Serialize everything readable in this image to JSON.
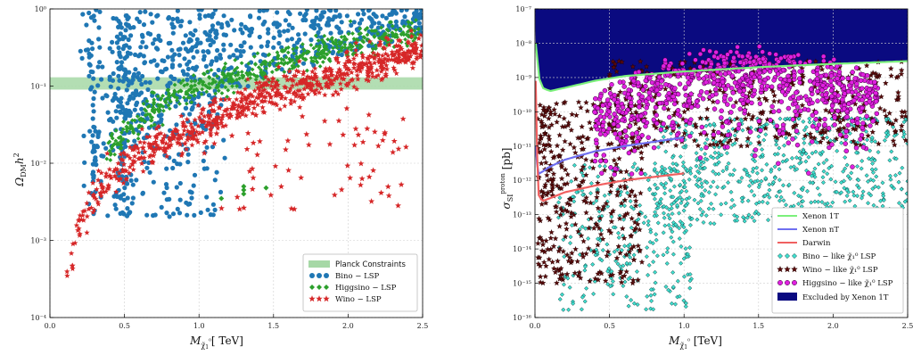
{
  "chart_data": [
    {
      "type": "scatter",
      "xlabel": "M_{χ̃₁⁰} [ TeV]",
      "ylabel": "Ω_{DM} h²",
      "xlim": [
        0.0,
        2.5
      ],
      "ylim": [
        0.0001,
        1
      ],
      "yscale": "log",
      "x_ticks": [
        "0.0",
        "0.5",
        "1.0",
        "1.5",
        "2.0",
        "2.5"
      ],
      "y_ticks": [
        "10⁻⁴",
        "10⁻³",
        "10⁻²",
        "10⁻¹",
        "10⁰"
      ],
      "grid": true,
      "legend_position": "lower-right",
      "band": {
        "name": "Planck Constraints",
        "y_low": 0.09,
        "y_high": 0.13,
        "color": "#a6d8a6"
      },
      "series": [
        {
          "name": "Bino − LSP",
          "color": "#1f77b4",
          "marker": "circle",
          "x": [
            0.2,
            0.3,
            0.4,
            0.45,
            0.5,
            0.55,
            0.6,
            0.7,
            0.8,
            0.9,
            1.0,
            1.2,
            1.4,
            1.6,
            1.8,
            2.0,
            2.2,
            2.4
          ],
          "y": [
            0.005,
            0.02,
            0.003,
            0.5,
            0.8,
            0.6,
            0.2,
            0.1,
            0.05,
            0.3,
            0.15,
            0.2,
            0.25,
            0.3,
            0.35,
            0.45,
            0.5,
            0.6
          ]
        },
        {
          "name": "Higgsino − LSP",
          "color": "#2ca02c",
          "marker": "diamond",
          "x": [
            0.4,
            0.6,
            0.8,
            1.0,
            1.2,
            1.4,
            1.6,
            1.8,
            2.0,
            2.2,
            2.4,
            1.15,
            1.3,
            1.45
          ],
          "y": [
            0.015,
            0.035,
            0.07,
            0.1,
            0.13,
            0.17,
            0.22,
            0.28,
            0.33,
            0.4,
            0.5,
            0.0035,
            0.005,
            0.0045
          ]
        },
        {
          "name": "Wino − LSP",
          "color": "#d62728",
          "marker": "star",
          "x": [
            0.1,
            0.2,
            0.3,
            0.4,
            0.5,
            0.6,
            0.8,
            1.0,
            1.2,
            1.4,
            1.6,
            1.8,
            2.0,
            2.2,
            2.4
          ],
          "y": [
            0.0003,
            0.0015,
            0.004,
            0.006,
            0.009,
            0.012,
            0.02,
            0.03,
            0.05,
            0.07,
            0.09,
            0.12,
            0.16,
            0.2,
            0.28
          ]
        }
      ]
    },
    {
      "type": "scatter",
      "xlabel": "M_{χ̃₁⁰} [TeV]",
      "ylabel": "σ_{SI}^{proton} [pb]",
      "xlim": [
        0.0,
        2.5
      ],
      "ylim": [
        1e-16,
        1e-07
      ],
      "yscale": "log",
      "x_ticks": [
        "0.0",
        "0.5",
        "1.0",
        "1.5",
        "2.0",
        "2.5"
      ],
      "y_ticks": [
        "10⁻¹⁶",
        "10⁻¹⁵",
        "10⁻¹⁴",
        "10⁻¹³",
        "10⁻¹²",
        "10⁻¹¹",
        "10⁻¹⁰",
        "10⁻⁹",
        "10⁻⁸",
        "10⁻⁷"
      ],
      "grid": true,
      "legend_position": "lower-right",
      "curves": [
        {
          "name": "Xenon 1T",
          "color": "#7cf07c",
          "x": [
            0.005,
            0.02,
            0.05,
            0.1,
            0.2,
            0.4,
            0.6,
            1.0,
            1.5,
            2.0,
            2.5
          ],
          "y": [
            1e-08,
            1.2e-09,
            5e-10,
            4e-10,
            5e-10,
            8e-10,
            1.1e-09,
            1.5e-09,
            2e-09,
            2.5e-09,
            3e-09
          ]
        },
        {
          "name": "Xenon nT",
          "color": "#6f6ff0",
          "x": [
            0.005,
            0.02,
            0.05,
            0.1,
            0.2,
            0.4,
            0.6,
            1.0
          ],
          "y": [
            1e-11,
            1.5e-12,
            1.8e-12,
            2.5e-12,
            4e-12,
            7e-12,
            1e-11,
            1.8e-11
          ]
        },
        {
          "name": "Darwin",
          "color": "#f06060",
          "x": [
            0.005,
            0.02,
            0.05,
            0.1,
            0.2,
            0.4,
            0.6,
            1.0
          ],
          "y": [
            8e-10,
            4e-13,
            2.5e-13,
            3e-13,
            4.5e-13,
            7e-13,
            1e-12,
            1.6e-12
          ]
        }
      ],
      "series": [
        {
          "name": "Bino − like χ̃₁⁰ LSP",
          "color": "#40e0d0",
          "marker": "diamond",
          "x": [
            0.2,
            0.4,
            0.6,
            0.8,
            1.0,
            1.2,
            1.5,
            1.8,
            2.1,
            2.4
          ],
          "y": [
            1e-12,
            1e-13,
            5e-14,
            1e-12,
            5e-13,
            3e-12,
            1e-11,
            3e-11,
            1e-11,
            2e-11
          ]
        },
        {
          "name": "Wino − like χ̃₁⁰ LSP",
          "color": "#5a0a0a",
          "marker": "star",
          "x": [
            0.05,
            0.2,
            0.4,
            0.6,
            0.8,
            1.0,
            1.4,
            1.8,
            2.2,
            2.5
          ],
          "y": [
            1e-10,
            1e-11,
            1e-12,
            1e-13,
            1e-10,
            1e-09,
            5e-10,
            2e-10,
            3e-10,
            5e-10
          ]
        },
        {
          "name": "Higgsino − like χ̃₁⁰ LSP",
          "color": "#e020e0",
          "marker": "circle",
          "x": [
            0.4,
            0.6,
            0.8,
            1.0,
            1.2,
            1.5,
            1.8,
            2.0,
            2.2
          ],
          "y": [
            1e-10,
            1e-10,
            3e-10,
            1e-09,
            3e-09,
            8e-09,
            3e-09,
            1e-09,
            5e-10
          ]
        }
      ],
      "excluded_region": {
        "name": "Excluded by Xenon 1T",
        "color": "#0a0a80"
      }
    }
  ]
}
